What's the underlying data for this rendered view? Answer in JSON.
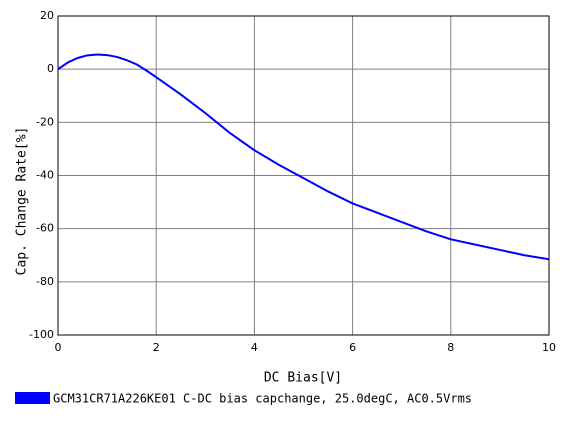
{
  "chart_data": {
    "type": "line",
    "xlabel": "DC Bias[V]",
    "ylabel": "Cap. Change Rate[%]",
    "x": [
      0,
      0.2,
      0.4,
      0.6,
      0.8,
      1.0,
      1.2,
      1.4,
      1.6,
      1.8,
      2,
      2.5,
      3,
      3.5,
      4,
      4.5,
      5,
      5.5,
      6,
      6.5,
      7,
      7.5,
      8,
      8.5,
      9,
      9.5,
      10
    ],
    "series": [
      {
        "name": "GCM31CR71A226KE01 C-DC bias capchange, 25.0degC, AC0.5Vrms",
        "color": "#0000ff",
        "values": [
          0,
          2.5,
          4.2,
          5.2,
          5.5,
          5.3,
          4.6,
          3.4,
          1.8,
          -0.5,
          -3,
          -9.5,
          -16.5,
          -24,
          -30.5,
          -36,
          -41,
          -46,
          -50.5,
          -54,
          -57.5,
          -61,
          -64,
          -66,
          -68,
          -70,
          -71.5
        ]
      }
    ],
    "xlim": [
      0,
      10
    ],
    "ylim": [
      -100,
      20
    ],
    "xticks": [
      0,
      2,
      4,
      6,
      8,
      10
    ],
    "yticks": [
      -100,
      -80,
      -60,
      -40,
      -20,
      0,
      20
    ],
    "grid": true
  }
}
